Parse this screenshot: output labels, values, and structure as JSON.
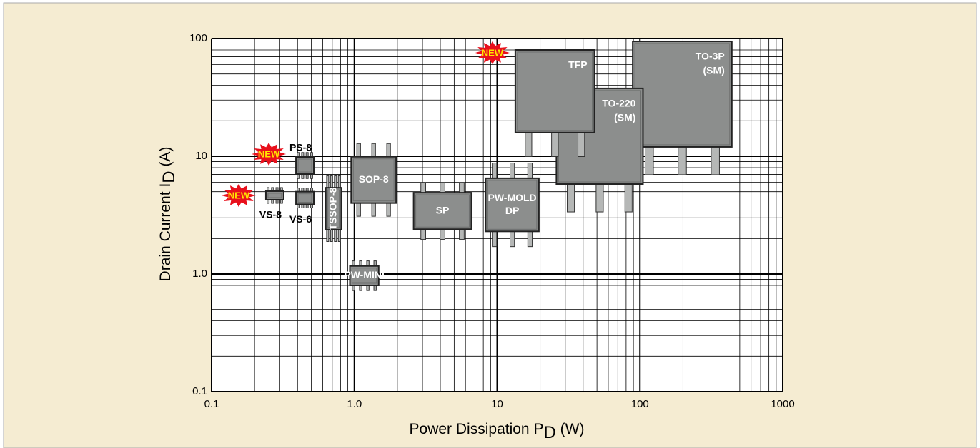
{
  "chart_data": {
    "type": "package-map",
    "xlabel": [
      "Power Dissipation  P",
      "D",
      " (W)"
    ],
    "ylabel": [
      "Drain Current  I",
      "D",
      " (A)"
    ],
    "xscale": "log",
    "yscale": "log",
    "grid": true,
    "xlim": [
      0.1,
      1000
    ],
    "ylim": [
      0.1,
      100
    ],
    "xticks": [
      {
        "value": 0.1,
        "label": "0.1"
      },
      {
        "value": 1,
        "label": "1.0"
      },
      10,
      100,
      1000
    ],
    "yticks": [
      {
        "value": 0.1,
        "label": "0.1"
      },
      {
        "value": 1,
        "label": "1.0"
      },
      10,
      100
    ],
    "color": "#8c8e8d",
    "packages": [
      {
        "name": [
          "TO-3P",
          "(SM)"
        ],
        "x": [
          89,
          440
        ],
        "y": [
          12,
          94.6
        ]
      },
      {
        "name": [
          "TO-220",
          "(SM)"
        ],
        "x": [
          26,
          105
        ],
        "y": [
          5.8,
          37.7
        ]
      },
      {
        "name": [
          "TFP"
        ],
        "x": [
          13.4,
          48
        ],
        "y": [
          15.9,
          80
        ],
        "badge": "NEW"
      },
      {
        "name": [
          "PW-MOLD",
          "DP"
        ],
        "x": [
          8.3,
          19.6
        ],
        "y": [
          2.3,
          6.5
        ]
      },
      {
        "name": [
          "SP"
        ],
        "x": [
          2.6,
          6.6
        ],
        "y": [
          2.4,
          4.9
        ]
      },
      {
        "name": [
          "SOP-8"
        ],
        "x": [
          0.95,
          1.96
        ],
        "y": [
          4,
          9.9
        ]
      },
      {
        "name": [
          "PW-MINI"
        ],
        "x": [
          0.93,
          1.48
        ],
        "y": [
          0.8,
          1.17
        ]
      },
      {
        "name": [
          "TSSOP-8"
        ],
        "x": [
          0.63,
          0.81
        ],
        "y": [
          2.38,
          5.4
        ]
      },
      {
        "name": [
          "PS-8"
        ],
        "x": [
          0.39,
          0.52
        ],
        "y": [
          7.05,
          9.86
        ],
        "badge": "NEW"
      },
      {
        "name": [
          "VS-6"
        ],
        "x": [
          0.39,
          0.52
        ],
        "y": [
          3.9,
          5.0
        ]
      },
      {
        "name": [
          "VS-8"
        ],
        "x": [
          0.24,
          0.32
        ],
        "y": [
          4.27,
          5.05
        ],
        "badge": "NEW"
      }
    ]
  }
}
